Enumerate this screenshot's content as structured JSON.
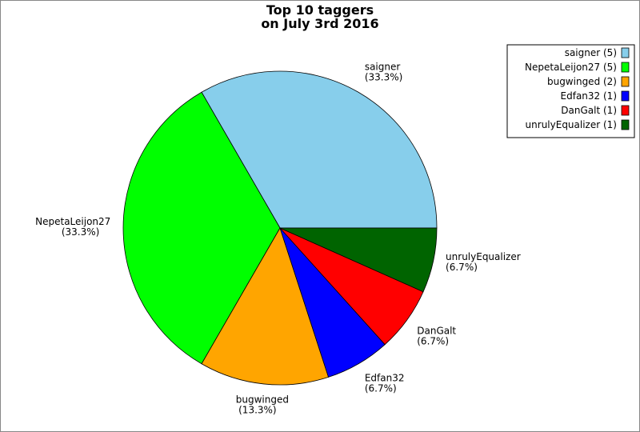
{
  "chart_data": {
    "type": "pie",
    "title": [
      "Top 10 taggers",
      "on July 3rd 2016"
    ],
    "categories": [
      "saigner",
      "NepetaLeijon27",
      "bugwinged",
      "Edfan32",
      "DanGalt",
      "unrulyEqualizer"
    ],
    "values": [
      5,
      5,
      2,
      1,
      1,
      1
    ],
    "percent_labels": [
      "(33.3%)",
      "(33.3%)",
      "(13.3%)",
      "(6.7%)",
      "(6.7%)",
      "(6.7%)"
    ],
    "colors": [
      "#87ceeb",
      "#00ff00",
      "#ffa500",
      "#0000ff",
      "#ff0000",
      "#006400"
    ],
    "legend_labels": [
      "saigner (5)",
      "NepetaLeijon27 (5)",
      "bugwinged (2)",
      "Edfan32 (1)",
      "DanGalt (1)",
      "unrulyEqualizer (1)"
    ],
    "legend_position": "upper right"
  }
}
